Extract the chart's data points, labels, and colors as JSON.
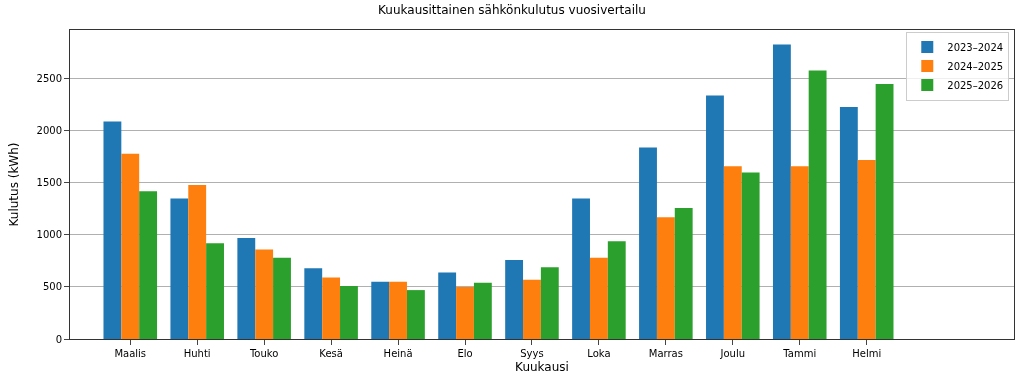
{
  "chart_data": {
    "type": "bar",
    "title": "Kuukausittainen sähkönkulutus vuosivertailu",
    "xlabel": "Kuukausi",
    "ylabel": "Kulutus (kWh)",
    "categories": [
      "Maalis",
      "Huhti",
      "Touko",
      "Kesä",
      "Heinä",
      "Elo",
      "Syys",
      "Loka",
      "Marras",
      "Joulu",
      "Tammi",
      "Helmi"
    ],
    "series": [
      {
        "name": "2023–2024",
        "color": "#1f77b4",
        "values": [
          2090,
          1350,
          970,
          680,
          550,
          640,
          760,
          1350,
          1840,
          2340,
          2830,
          2230
        ]
      },
      {
        "name": "2024–2025",
        "color": "#ff7f0e",
        "values": [
          1780,
          1480,
          860,
          590,
          550,
          500,
          570,
          780,
          1170,
          1660,
          1660,
          1720
        ]
      },
      {
        "name": "2025–2026",
        "color": "#2ca02c",
        "values": [
          1420,
          920,
          780,
          510,
          470,
          540,
          690,
          940,
          1260,
          1600,
          2580,
          2450
        ]
      }
    ],
    "ylim": [
      0,
      2970
    ],
    "yticks": [
      0,
      500,
      1000,
      1500,
      2000,
      2500
    ],
    "grid": "y",
    "legend": "top right"
  }
}
